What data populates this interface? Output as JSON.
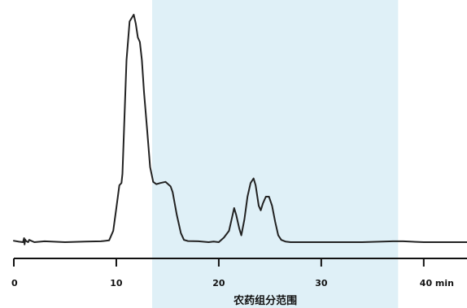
{
  "chart_data": {
    "type": "line",
    "xlim": [
      0,
      42
    ],
    "ylim": [
      0,
      1
    ],
    "x_ticks": [
      0,
      10,
      20,
      30,
      40
    ],
    "tick_labels": [
      "0",
      "10",
      "20",
      "30",
      "40 min"
    ],
    "shaded_region": {
      "x_start": 13.5,
      "x_end": 37.5,
      "label": "农药组分范围",
      "color": "#dff0f7"
    },
    "line_color": "#222222",
    "axis_color": "#111111",
    "series": [
      {
        "x": [
          0.0,
          0.5,
          0.9,
          1.0,
          1.05,
          1.1,
          1.2,
          1.4,
          1.5,
          2.0,
          3.0,
          5.0,
          7.0,
          8.5,
          9.3,
          9.7,
          10.0,
          10.3,
          10.5,
          10.6,
          10.8,
          11.0,
          11.3,
          11.7,
          11.9,
          12.1,
          12.3,
          12.5,
          12.7,
          13.0,
          13.3,
          13.6,
          13.9,
          14.3,
          14.8,
          15.3,
          15.5,
          15.9,
          16.3,
          16.6,
          17.0,
          18.0,
          19.0,
          19.5,
          20.0,
          20.5,
          21.0,
          21.3,
          21.5,
          21.7,
          22.0,
          22.2,
          22.5,
          22.8,
          23.1,
          23.4,
          23.6,
          23.9,
          24.1,
          24.3,
          24.6,
          24.9,
          25.2,
          25.5,
          25.8,
          26.1,
          26.5,
          27.0,
          28.0,
          30.0,
          34.0,
          37.0,
          38.0,
          40.0,
          42.0
        ],
        "y": [
          0.006,
          0.002,
          0.0,
          0.018,
          -0.01,
          0.012,
          0.005,
          0.0,
          0.01,
          0.0,
          0.004,
          0.0,
          0.003,
          0.004,
          0.008,
          0.05,
          0.15,
          0.25,
          0.26,
          0.3,
          0.55,
          0.8,
          0.97,
          1.0,
          0.96,
          0.9,
          0.88,
          0.8,
          0.66,
          0.5,
          0.33,
          0.265,
          0.255,
          0.26,
          0.265,
          0.245,
          0.22,
          0.12,
          0.04,
          0.01,
          0.005,
          0.004,
          0.0,
          0.003,
          0.0,
          0.02,
          0.05,
          0.11,
          0.15,
          0.12,
          0.06,
          0.03,
          0.1,
          0.2,
          0.26,
          0.28,
          0.25,
          0.16,
          0.14,
          0.17,
          0.2,
          0.2,
          0.16,
          0.09,
          0.03,
          0.01,
          0.003,
          0.0,
          0.0,
          0.0,
          0.0,
          0.004,
          0.004,
          0.0,
          0.0
        ]
      }
    ]
  }
}
